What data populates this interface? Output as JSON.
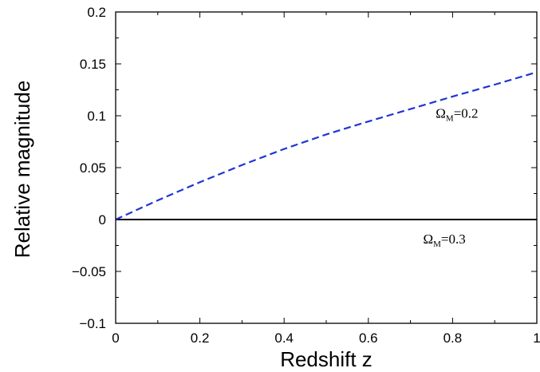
{
  "chart_data": {
    "type": "line",
    "title": "",
    "xlabel": "Redshift z",
    "ylabel": "Relative magnitude",
    "xlim": [
      0,
      1
    ],
    "ylim": [
      -0.1,
      0.2
    ],
    "xticks": [
      0,
      0.2,
      0.4,
      0.6,
      0.8,
      1
    ],
    "xtick_labels": [
      "0",
      "0.2",
      "0.4",
      "0.6",
      "0.8",
      "1"
    ],
    "yticks": [
      -0.1,
      -0.05,
      0,
      0.05,
      0.1,
      0.15,
      0.2
    ],
    "ytick_labels": [
      "−0.1",
      "−0.05",
      "0",
      "0.05",
      "0.1",
      "0.15",
      "0.2"
    ],
    "grid": false,
    "series": [
      {
        "name": "ΩM=0.3",
        "annotation_main": "Ω",
        "annotation_sub": "M",
        "annotation_rest": "=0.3",
        "color": "#000000",
        "style": "solid",
        "x": [
          0,
          0.1,
          0.2,
          0.3,
          0.4,
          0.5,
          0.6,
          0.7,
          0.8,
          0.9,
          1.0
        ],
        "y": [
          0,
          0,
          0,
          0,
          0,
          0,
          0,
          0,
          0,
          0,
          0
        ]
      },
      {
        "name": "ΩM=0.2",
        "annotation_main": "Ω",
        "annotation_sub": "M",
        "annotation_rest": "=0.2",
        "color": "#1f35d6",
        "style": "dashed",
        "x": [
          0,
          0.1,
          0.2,
          0.3,
          0.4,
          0.5,
          0.6,
          0.7,
          0.8,
          0.9,
          1.0
        ],
        "y": [
          0,
          0.0185,
          0.036,
          0.0525,
          0.068,
          0.082,
          0.0945,
          0.1065,
          0.1185,
          0.13,
          0.142
        ]
      }
    ]
  }
}
